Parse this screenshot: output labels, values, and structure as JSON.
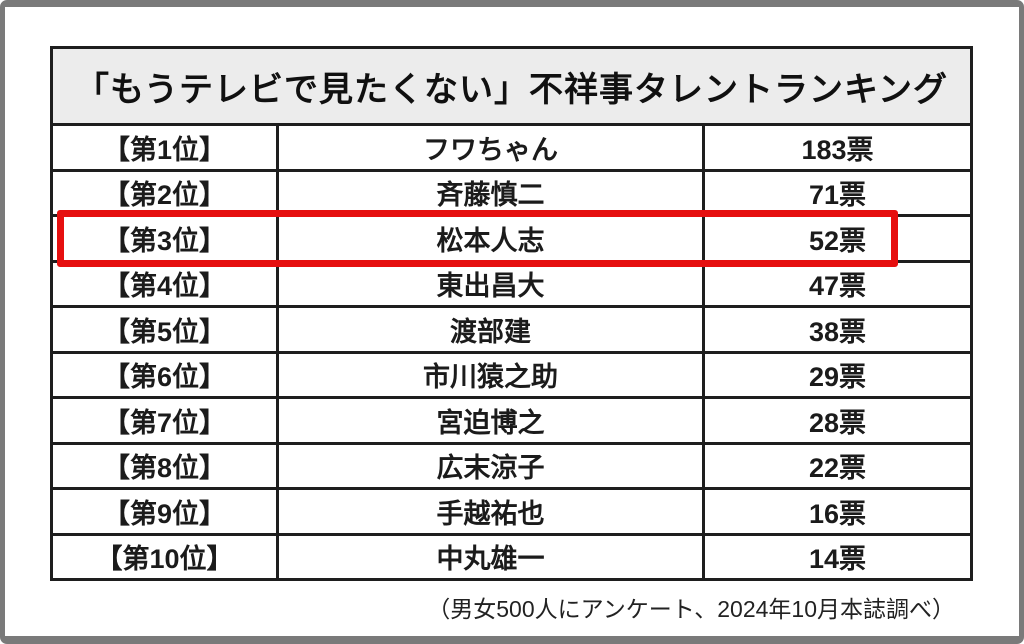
{
  "frame": {
    "border_color": "#7a7a7a",
    "background": "#ffffff"
  },
  "table": {
    "title": "「もうテレビで見たくない」不祥事タレントランキング",
    "header_bg": "#ececec",
    "border_color": "#1e1e1e",
    "highlight_color": "#e60f0f",
    "rows": [
      {
        "rank": "【第1位】",
        "name": "フワちゃん",
        "votes": "183票",
        "highlighted": false
      },
      {
        "rank": "【第2位】",
        "name": "斉藤慎二",
        "votes": "71票",
        "highlighted": false
      },
      {
        "rank": "【第3位】",
        "name": "松本人志",
        "votes": "52票",
        "highlighted": true
      },
      {
        "rank": "【第4位】",
        "name": "東出昌大",
        "votes": "47票",
        "highlighted": false
      },
      {
        "rank": "【第5位】",
        "name": "渡部建",
        "votes": "38票",
        "highlighted": false
      },
      {
        "rank": "【第6位】",
        "name": "市川猿之助",
        "votes": "29票",
        "highlighted": false
      },
      {
        "rank": "【第7位】",
        "name": "宮迫博之",
        "votes": "28票",
        "highlighted": false
      },
      {
        "rank": "【第8位】",
        "name": "広末涼子",
        "votes": "22票",
        "highlighted": false
      },
      {
        "rank": "【第9位】",
        "name": "手越祐也",
        "votes": "16票",
        "highlighted": false
      },
      {
        "rank": "【第10位】",
        "name": "中丸雄一",
        "votes": "14票",
        "highlighted": false
      }
    ]
  },
  "footer": {
    "note": "（男女500人にアンケート、2024年10月本誌調べ）"
  }
}
